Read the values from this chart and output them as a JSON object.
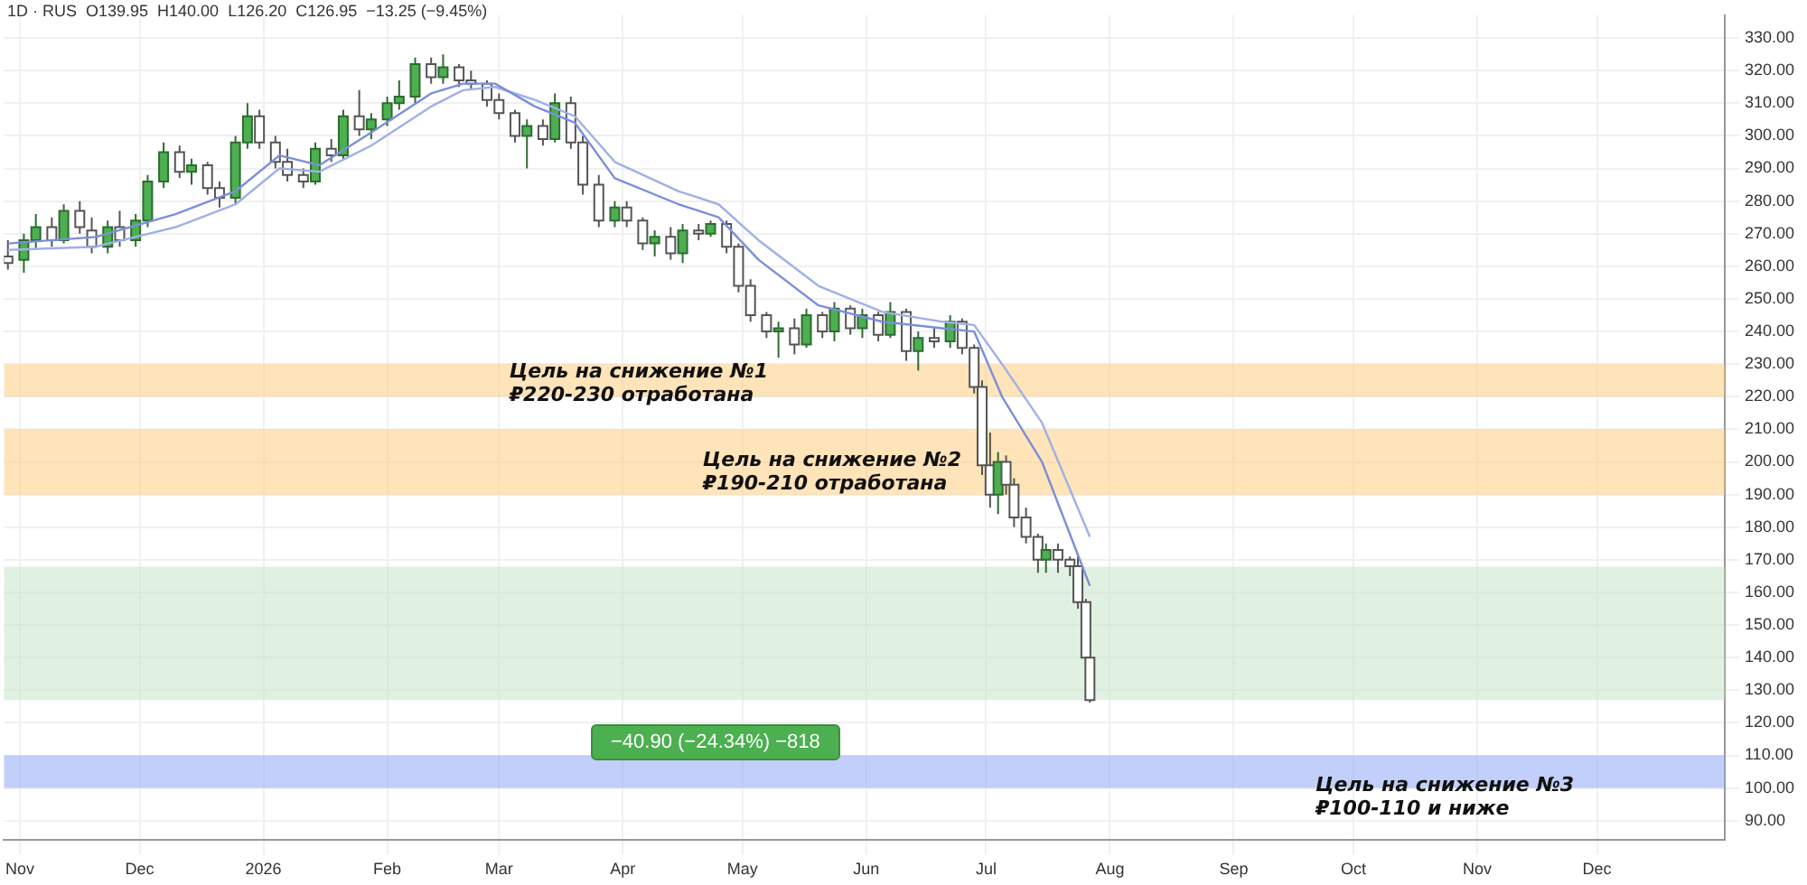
{
  "chart_data": {
    "type": "candlestick",
    "subtitle": "1D · RUS  O139.95  H140.00  L126.20  C126.95  −13.25 (−9.45%)",
    "x": [
      "2025-10-29",
      "2025-11-02",
      "2025-11-05",
      "2025-11-09",
      "2025-11-12",
      "2025-11-16",
      "2025-11-19",
      "2025-11-23",
      "2025-11-26",
      "2025-11-30",
      "2025-12-03",
      "2025-12-07",
      "2025-12-11",
      "2025-12-14",
      "2025-12-18",
      "2025-12-21",
      "2025-12-25",
      "2025-12-28",
      "2025-12-31",
      "2026-01-04",
      "2026-01-07",
      "2026-01-11",
      "2026-01-14",
      "2026-01-18",
      "2026-01-21",
      "2026-01-25",
      "2026-01-28",
      "2026-02-01",
      "2026-02-04",
      "2026-02-08",
      "2026-02-12",
      "2026-02-15",
      "2026-02-19",
      "2026-02-22",
      "2026-02-26",
      "2026-03-01",
      "2026-03-05",
      "2026-03-08",
      "2026-03-12",
      "2026-03-15",
      "2026-03-19",
      "2026-03-22",
      "2026-03-26",
      "2026-03-30",
      "2026-04-02",
      "2026-04-06",
      "2026-04-09",
      "2026-04-13",
      "2026-04-16",
      "2026-04-20",
      "2026-04-23",
      "2026-04-27",
      "2026-04-30",
      "2026-05-03",
      "2026-05-07",
      "2026-05-10",
      "2026-05-14",
      "2026-05-17",
      "2026-05-21",
      "2026-05-24",
      "2026-05-28",
      "2026-05-31",
      "2026-06-04",
      "2026-06-07",
      "2026-06-11",
      "2026-06-14",
      "2026-06-18",
      "2026-06-22",
      "2026-06-25",
      "2026-06-28",
      "2026-06-30",
      "2026-07-02",
      "2026-07-04",
      "2026-07-06",
      "2026-07-08",
      "2026-07-11",
      "2026-07-14",
      "2026-07-16",
      "2026-07-19",
      "2026-07-22",
      "2026-07-24",
      "2026-07-26",
      "2026-07-27"
    ],
    "ohlc": [
      [
        263,
        268,
        259,
        261
      ],
      [
        262,
        270,
        258,
        268
      ],
      [
        268,
        276,
        265,
        272
      ],
      [
        272,
        275,
        266,
        268
      ],
      [
        268,
        279,
        267,
        277
      ],
      [
        277,
        280,
        270,
        272
      ],
      [
        271,
        275,
        264,
        266
      ],
      [
        266,
        274,
        264,
        272
      ],
      [
        272,
        277,
        266,
        268
      ],
      [
        268,
        276,
        266,
        274
      ],
      [
        274,
        288,
        272,
        286
      ],
      [
        286,
        298,
        284,
        295
      ],
      [
        295,
        297,
        287,
        289
      ],
      [
        289,
        293,
        285,
        291
      ],
      [
        291,
        292,
        282,
        284
      ],
      [
        284,
        286,
        278,
        281
      ],
      [
        281,
        300,
        279,
        298
      ],
      [
        298,
        310,
        296,
        306
      ],
      [
        306,
        308,
        296,
        298
      ],
      [
        298,
        300,
        290,
        292
      ],
      [
        292,
        296,
        286,
        288
      ],
      [
        288,
        290,
        284,
        286
      ],
      [
        286,
        298,
        285,
        296
      ],
      [
        296,
        299,
        292,
        294
      ],
      [
        294,
        308,
        293,
        306
      ],
      [
        306,
        314,
        300,
        302
      ],
      [
        302,
        307,
        299,
        305
      ],
      [
        305,
        312,
        303,
        310
      ],
      [
        310,
        317,
        308,
        312
      ],
      [
        312,
        324,
        310,
        322
      ],
      [
        322,
        324,
        316,
        318
      ],
      [
        318,
        325,
        316,
        321
      ],
      [
        321,
        322,
        315,
        317
      ],
      [
        317,
        320,
        314,
        316
      ],
      [
        316,
        317,
        309,
        311
      ],
      [
        311,
        313,
        305,
        307
      ],
      [
        307,
        308,
        298,
        300
      ],
      [
        300,
        305,
        290,
        303
      ],
      [
        303,
        305,
        297,
        299
      ],
      [
        299,
        313,
        298,
        310
      ],
      [
        310,
        312,
        296,
        298
      ],
      [
        298,
        300,
        282,
        285
      ],
      [
        285,
        288,
        272,
        274
      ],
      [
        274,
        280,
        272,
        278
      ],
      [
        278,
        280,
        272,
        274
      ],
      [
        274,
        275,
        265,
        267
      ],
      [
        267,
        271,
        263,
        269
      ],
      [
        269,
        272,
        262,
        264
      ],
      [
        264,
        273,
        261,
        271
      ],
      [
        271,
        273,
        268,
        270
      ],
      [
        270,
        274,
        269,
        273
      ],
      [
        273,
        274,
        264,
        266
      ],
      [
        266,
        267,
        252,
        254
      ],
      [
        254,
        256,
        243,
        245
      ],
      [
        245,
        246,
        238,
        240
      ],
      [
        240,
        243,
        232,
        241
      ],
      [
        241,
        244,
        233,
        236
      ],
      [
        236,
        247,
        235,
        245
      ],
      [
        245,
        246,
        238,
        240
      ],
      [
        240,
        249,
        237,
        247
      ],
      [
        247,
        248,
        239,
        241
      ],
      [
        241,
        247,
        238,
        245
      ],
      [
        245,
        246,
        237,
        239
      ],
      [
        239,
        249,
        238,
        246
      ],
      [
        246,
        247,
        231,
        234
      ],
      [
        234,
        240,
        228,
        238
      ],
      [
        238,
        241,
        235,
        237
      ],
      [
        237,
        245,
        235,
        243
      ],
      [
        243,
        244,
        233,
        235
      ],
      [
        235,
        236,
        221,
        223
      ],
      [
        223,
        225,
        196,
        199
      ],
      [
        199,
        209,
        186,
        190
      ],
      [
        190,
        203,
        184,
        200
      ],
      [
        200,
        202,
        190,
        193
      ],
      [
        193,
        195,
        180,
        183
      ],
      [
        183,
        186,
        175,
        177
      ],
      [
        177,
        178,
        166,
        170
      ],
      [
        170,
        175,
        166,
        173
      ],
      [
        173,
        175,
        166,
        170
      ],
      [
        170,
        171,
        165,
        168
      ],
      [
        168,
        171,
        155,
        157
      ],
      [
        157,
        158,
        139,
        140
      ],
      [
        139.95,
        140,
        126.2,
        126.95
      ]
    ],
    "colors": [
      "#ffffff",
      "#4caf50",
      "#4caf50",
      "#ffffff",
      "#4caf50",
      "#ffffff",
      "#ffffff",
      "#4caf50",
      "#ffffff",
      "#4caf50",
      "#4caf50",
      "#4caf50",
      "#ffffff",
      "#4caf50",
      "#ffffff",
      "#ffffff",
      "#4caf50",
      "#4caf50",
      "#ffffff",
      "#ffffff",
      "#ffffff",
      "#ffffff",
      "#4caf50",
      "#ffffff",
      "#4caf50",
      "#ffffff",
      "#4caf50",
      "#4caf50",
      "#4caf50",
      "#4caf50",
      "#ffffff",
      "#4caf50",
      "#ffffff",
      "#ffffff",
      "#ffffff",
      "#ffffff",
      "#ffffff",
      "#4caf50",
      "#ffffff",
      "#4caf50",
      "#ffffff",
      "#ffffff",
      "#ffffff",
      "#4caf50",
      "#ffffff",
      "#ffffff",
      "#4caf50",
      "#ffffff",
      "#4caf50",
      "#ffffff",
      "#4caf50",
      "#ffffff",
      "#ffffff",
      "#ffffff",
      "#ffffff",
      "#4caf50",
      "#ffffff",
      "#4caf50",
      "#ffffff",
      "#4caf50",
      "#ffffff",
      "#4caf50",
      "#ffffff",
      "#4caf50",
      "#ffffff",
      "#4caf50",
      "#ffffff",
      "#4caf50",
      "#ffffff",
      "#ffffff",
      "#ffffff",
      "#ffffff",
      "#4caf50",
      "#ffffff",
      "#ffffff",
      "#ffffff",
      "#ffffff",
      "#4caf50",
      "#ffffff",
      "#ffffff",
      "#ffffff",
      "#ffffff",
      "#ffffff"
    ],
    "series": [
      {
        "type": "line",
        "color": "#7b8fd9",
        "x": [
          "2025-10-29",
          "2025-11-20",
          "2025-12-10",
          "2025-12-25",
          "2026-01-05",
          "2026-01-15",
          "2026-01-28",
          "2026-02-12",
          "2026-02-20",
          "2026-02-28",
          "2026-03-10",
          "2026-03-20",
          "2026-03-30",
          "2026-04-15",
          "2026-04-25",
          "2026-05-05",
          "2026-05-20",
          "2026-06-05",
          "2026-06-20",
          "2026-06-28",
          "2026-07-05",
          "2026-07-15",
          "2026-07-27"
        ],
        "values": [
          267,
          269,
          276,
          283,
          294,
          291,
          301,
          313,
          316,
          316,
          309,
          304,
          287,
          279,
          275,
          262,
          248,
          243,
          241,
          240,
          220,
          200,
          162
        ]
      },
      {
        "type": "line",
        "color": "#9fb0e8",
        "x": [
          "2025-10-29",
          "2025-11-20",
          "2025-12-10",
          "2025-12-25",
          "2026-01-05",
          "2026-01-15",
          "2026-01-28",
          "2026-02-12",
          "2026-02-20",
          "2026-02-28",
          "2026-03-10",
          "2026-03-20",
          "2026-03-30",
          "2026-04-15",
          "2026-04-25",
          "2026-05-05",
          "2026-05-20",
          "2026-06-05",
          "2026-06-20",
          "2026-06-28",
          "2026-07-05",
          "2026-07-15",
          "2026-07-27"
        ],
        "values": [
          265,
          266,
          272,
          279,
          290,
          289,
          297,
          309,
          314,
          315,
          311,
          306,
          292,
          283,
          279,
          268,
          254,
          246,
          243,
          242,
          230,
          212,
          177
        ]
      }
    ],
    "bands": [
      {
        "axis": "y",
        "from": 220,
        "to": 230,
        "color": "#ffcc80"
      },
      {
        "axis": "y",
        "from": 190,
        "to": 210,
        "color": "#ffcc80"
      },
      {
        "axis": "y",
        "from": 126.95,
        "to": 167.85,
        "color": "#c8e6c9"
      },
      {
        "axis": "y",
        "from": 100,
        "to": 110,
        "color": "#90a8f8"
      }
    ],
    "annotations": [
      "Цель на снижение №1\n₽220-230 отработана",
      "Цель на снижение №2\n₽190-210 отработана",
      "−40.90 (−24.34%) −818",
      "Цель на снижение №3\n₽100-110 и ниже"
    ],
    "xlim": [
      "2025-10-28",
      "2027-01-02"
    ],
    "xticks": [
      {
        "value": "2025-11-01",
        "label": "Nov"
      },
      {
        "value": "2025-12-01",
        "label": "Dec"
      },
      {
        "value": "2026-01-01",
        "label": "2026"
      },
      {
        "value": "2026-02-01",
        "label": "Feb"
      },
      {
        "value": "2026-03-01",
        "label": "Mar"
      },
      {
        "value": "2026-04-01",
        "label": "Apr"
      },
      {
        "value": "2026-05-01",
        "label": "May"
      },
      {
        "value": "2026-06-01",
        "label": "Jun"
      },
      {
        "value": "2026-07-01",
        "label": "Jul"
      },
      {
        "value": "2026-08-01",
        "label": "Aug"
      },
      {
        "value": "2026-09-01",
        "label": "Sep"
      },
      {
        "value": "2026-10-01",
        "label": "Oct"
      },
      {
        "value": "2026-11-01",
        "label": "Nov"
      },
      {
        "value": "2026-12-01",
        "label": "Dec"
      }
    ],
    "ylim": [
      84,
      337
    ],
    "yticks": [
      {
        "value": 90,
        "label": "90.00"
      },
      {
        "value": 100,
        "label": "100.00"
      },
      {
        "value": 110,
        "label": "110.00"
      },
      {
        "value": 120,
        "label": "120.00"
      },
      {
        "value": 130,
        "label": "130.00"
      },
      {
        "value": 140,
        "label": "140.00"
      },
      {
        "value": 150,
        "label": "150.00"
      },
      {
        "value": 160,
        "label": "160.00"
      },
      {
        "value": 170,
        "label": "170.00"
      },
      {
        "value": 180,
        "label": "180.00"
      },
      {
        "value": 190,
        "label": "190.00"
      },
      {
        "value": 200,
        "label": "200.00"
      },
      {
        "value": 210,
        "label": "210.00"
      },
      {
        "value": 220,
        "label": "220.00"
      },
      {
        "value": 230,
        "label": "230.00"
      },
      {
        "value": 240,
        "label": "240.00"
      },
      {
        "value": 250,
        "label": "250.00"
      },
      {
        "value": 260,
        "label": "260.00"
      },
      {
        "value": 270,
        "label": "270.00"
      },
      {
        "value": 280,
        "label": "280.00"
      },
      {
        "value": 290,
        "label": "290.00"
      },
      {
        "value": 300,
        "label": "300.00"
      },
      {
        "value": 310,
        "label": "310.00"
      },
      {
        "value": 320,
        "label": "320.00"
      },
      {
        "value": 330,
        "label": "330.00"
      }
    ],
    "grid": true,
    "legend": false,
    "marker": "none",
    "line_style": "solid"
  }
}
